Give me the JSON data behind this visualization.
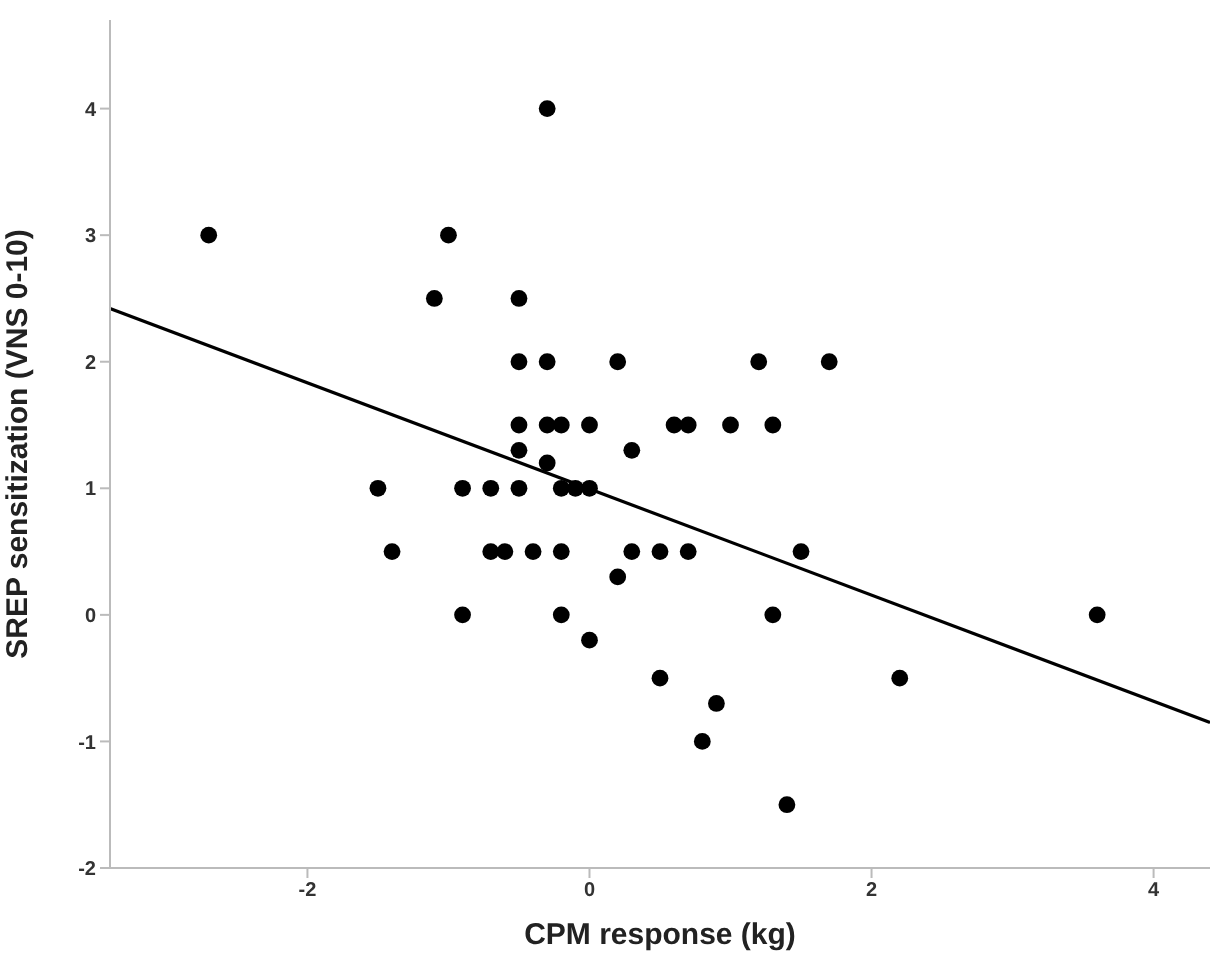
{
  "chart_data": {
    "type": "scatter",
    "xlabel": "CPM response (kg)",
    "ylabel": "SREP sensitization (VNS 0-10)",
    "xlim": [
      -3.4,
      4.4
    ],
    "xticks": [
      -2,
      0,
      2,
      4
    ],
    "ylim": [
      -2,
      4.7
    ],
    "yticks": [
      -2,
      -1,
      0,
      1,
      2,
      3,
      4
    ],
    "grid": false,
    "marker": "circle",
    "series": [
      {
        "color": "#000000",
        "x": [
          -0.3,
          -2.7,
          -1.0,
          -1.1,
          -0.5,
          -0.5,
          -0.3,
          0.2,
          1.2,
          1.7,
          -0.5,
          -0.3,
          -0.2,
          0.0,
          0.6,
          0.7,
          1.0,
          1.3,
          -0.5,
          0.3,
          -0.3,
          -1.5,
          -0.9,
          -0.7,
          -0.5,
          -0.2,
          -0.1,
          0.0,
          -1.4,
          -0.7,
          -0.6,
          -0.4,
          -0.2,
          0.3,
          0.5,
          0.7,
          1.5,
          0.2,
          -0.9,
          -0.2,
          1.3,
          3.6,
          0.0,
          0.5,
          2.2,
          0.9,
          0.8,
          1.4
        ],
        "values": [
          4,
          3,
          3,
          2.5,
          2.5,
          2,
          2,
          2,
          2,
          2,
          1.5,
          1.5,
          1.5,
          1.5,
          1.5,
          1.5,
          1.5,
          1.5,
          1.3,
          1.3,
          1.2,
          1,
          1,
          1,
          1,
          1,
          1,
          1,
          0.5,
          0.5,
          0.5,
          0.5,
          0.5,
          0.5,
          0.5,
          0.5,
          0.5,
          0.3,
          0,
          0,
          0,
          0,
          -0.2,
          -0.5,
          -0.5,
          -0.7,
          -1.0,
          -1.5
        ]
      },
      {
        "type": "line",
        "color": "#000000",
        "marker": "none",
        "x": [
          -3.4,
          4.4
        ],
        "values": [
          2.42,
          -0.85
        ]
      }
    ]
  }
}
